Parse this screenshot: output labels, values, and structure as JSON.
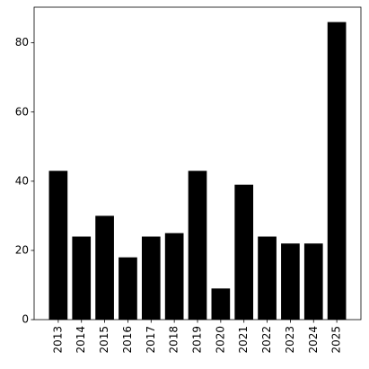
{
  "chart_data": {
    "type": "bar",
    "categories": [
      "2013",
      "2014",
      "2015",
      "2016",
      "2017",
      "2018",
      "2019",
      "2020",
      "2021",
      "2022",
      "2023",
      "2024",
      "2025"
    ],
    "values": [
      43,
      24,
      30,
      18,
      24,
      25,
      43,
      9,
      39,
      24,
      22,
      22,
      86
    ],
    "color": "#000000",
    "ylim": [
      0,
      90.3
    ],
    "yticks": [
      0,
      20,
      40,
      60,
      80
    ]
  }
}
